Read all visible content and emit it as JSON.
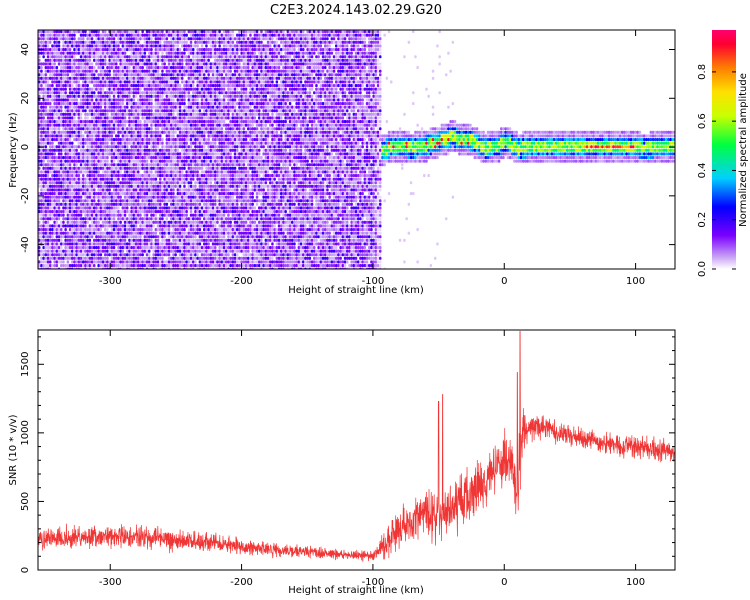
{
  "title": "C2E3.2024.143.02.29.G20",
  "chart_data": [
    {
      "type": "heatmap",
      "xlabel": "Height of straight line (km)",
      "ylabel": "Frequency (Hz)",
      "xlim": [
        -355,
        130
      ],
      "ylim": [
        -50,
        48
      ],
      "x_ticks": [
        -300,
        -200,
        -100,
        0,
        100
      ],
      "y_ticks": [
        -40,
        -20,
        0,
        20,
        40
      ],
      "colorbar": {
        "label": "Normalized spectral amplitude",
        "range": [
          0,
          0.97
        ],
        "ticks": [
          0.0,
          0.2,
          0.4,
          0.6,
          0.8
        ],
        "colormap": [
          "#ffffff",
          "#c9a3f5",
          "#7a00ff",
          "#0000ff",
          "#00d0ff",
          "#00ff40",
          "#c8ff00",
          "#ffe000",
          "#ff8000",
          "#ff0030",
          "#ff0070"
        ]
      },
      "regions": [
        {
          "x": [
            -355,
            -95
          ],
          "freq": [
            -50,
            48
          ],
          "amplitude": "low",
          "description": "broadband noise"
        },
        {
          "x": [
            -95,
            130
          ],
          "freq": [
            -3,
            5
          ],
          "amplitude": "high",
          "description": "narrow band centered near 1 Hz"
        }
      ],
      "ridge": {
        "x": [
          -95,
          -85,
          -70,
          -55,
          -40,
          -35,
          -25,
          -15,
          -5,
          0,
          10,
          30,
          60,
          80,
          95,
          105,
          130
        ],
        "freq": [
          -1,
          1,
          0,
          2,
          5,
          4,
          3,
          0,
          1,
          3,
          0,
          1,
          1,
          1,
          1,
          0,
          1
        ]
      }
    },
    {
      "type": "line",
      "xlabel": "Height of straight line (km)",
      "ylabel": "SNR (10 * v/v)",
      "xlim": [
        -355,
        130
      ],
      "ylim": [
        0,
        1750
      ],
      "x_ticks": [
        -300,
        -200,
        -100,
        0,
        100
      ],
      "y_ticks": [
        0,
        500,
        1000,
        1500
      ],
      "color": "#f03535",
      "series": [
        {
          "x": [
            -355,
            -330,
            -300,
            -270,
            -250,
            -220,
            -200,
            -150,
            -120,
            -100,
            -90,
            -80,
            -70,
            -60,
            -50,
            -40,
            -30,
            -20,
            -10,
            0,
            5,
            10,
            12,
            15,
            20,
            30,
            40,
            60,
            80,
            100,
            120,
            130
          ],
          "center": [
            230,
            240,
            240,
            240,
            220,
            200,
            170,
            130,
            110,
            100,
            200,
            300,
            380,
            420,
            380,
            420,
            530,
            600,
            720,
            800,
            780,
            500,
            900,
            1000,
            1050,
            1050,
            1000,
            950,
            920,
            900,
            880,
            860
          ],
          "spread": [
            100,
            110,
            110,
            120,
            100,
            90,
            80,
            60,
            50,
            50,
            130,
            200,
            250,
            300,
            220,
            250,
            300,
            260,
            250,
            250,
            280,
            300,
            450,
            260,
            150,
            130,
            120,
            110,
            100,
            100,
            100,
            100
          ]
        }
      ],
      "peaks": [
        {
          "x": 12,
          "y": 1740
        },
        {
          "x": -50,
          "y": 1230
        },
        {
          "x": -47,
          "y": 1280
        },
        {
          "x": 10,
          "y": 1440
        }
      ]
    }
  ]
}
